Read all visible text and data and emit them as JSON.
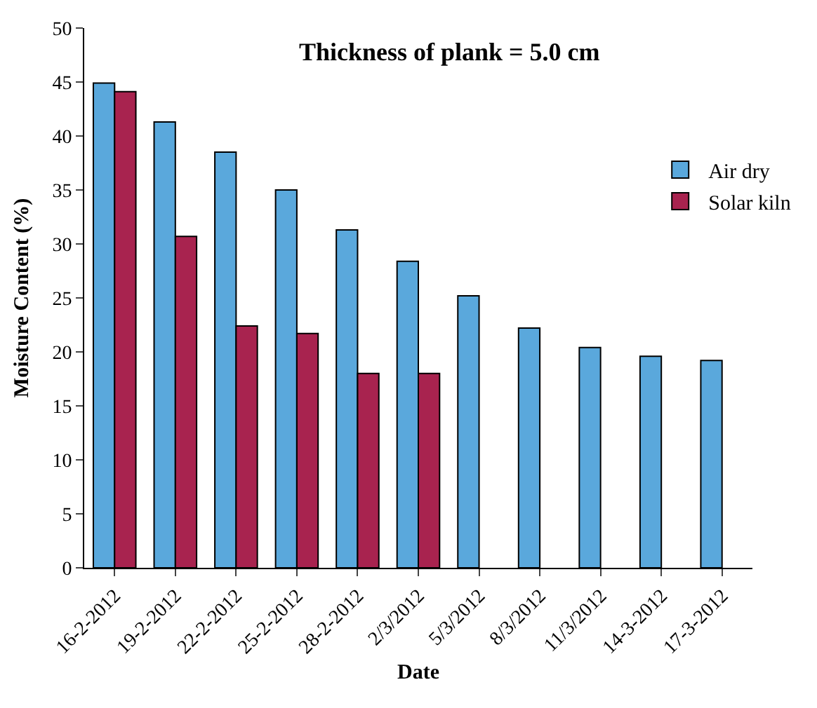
{
  "chart_data": {
    "type": "bar",
    "title": "Thickness of plank = 5.0 cm",
    "xlabel": "Date",
    "ylabel": "Moisture Content (%)",
    "categories": [
      "16-2-2012",
      "19-2-2012",
      "22-2-2012",
      "25-2-2012",
      "28-2-2012",
      "2/3/2012",
      "5/3/2012",
      "8/3/2012",
      "11/3/2012",
      "14-3-2012",
      "17-3-2012"
    ],
    "series": [
      {
        "name": "Air dry",
        "color": "#5aa8dc",
        "values": [
          44.9,
          41.3,
          38.5,
          35.0,
          31.3,
          28.4,
          25.2,
          22.2,
          20.4,
          19.6,
          19.2
        ]
      },
      {
        "name": "Solar kiln",
        "color": "#a8234f",
        "values": [
          44.1,
          30.7,
          22.4,
          21.7,
          18.0,
          18.0,
          null,
          null,
          null,
          null,
          null
        ]
      }
    ],
    "ylim": [
      0,
      50
    ],
    "yticks": [
      0,
      5,
      10,
      15,
      20,
      25,
      30,
      35,
      40,
      45,
      50
    ],
    "grid": false,
    "legend": "right"
  }
}
